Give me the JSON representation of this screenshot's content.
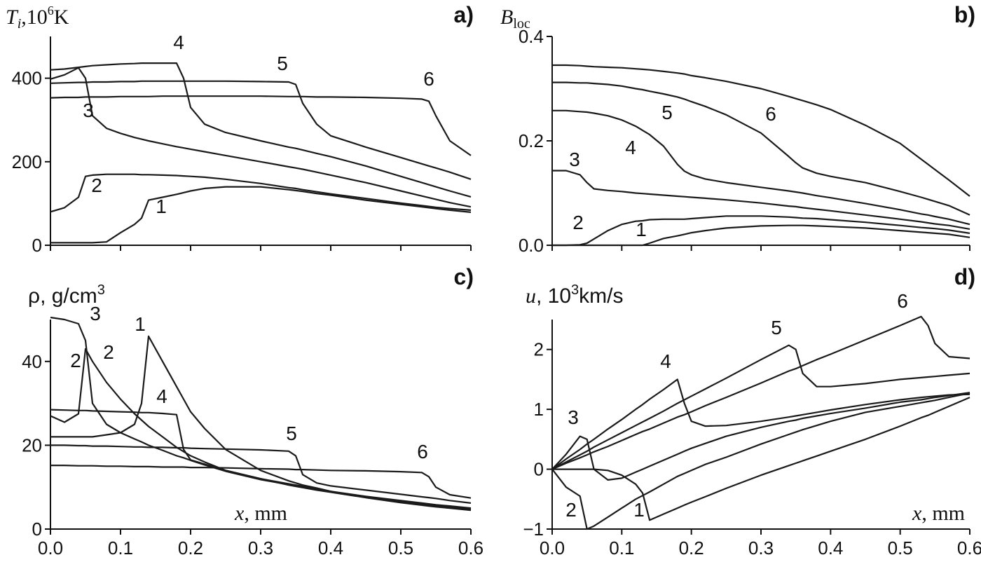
{
  "chart_data": [
    {
      "type": "line",
      "title": "a)",
      "ylabel": [
        "T",
        "i",
        ",10",
        "6",
        "K"
      ],
      "x": [
        0,
        0.02,
        0.04,
        0.05,
        0.06,
        0.08,
        0.1,
        0.12,
        0.13,
        0.14,
        0.16,
        0.18,
        0.19,
        0.2,
        0.22,
        0.25,
        0.3,
        0.34,
        0.35,
        0.36,
        0.38,
        0.4,
        0.45,
        0.5,
        0.53,
        0.54,
        0.55,
        0.57,
        0.6
      ],
      "xlim": [
        0,
        0.6
      ],
      "xticks": [
        0,
        0.1,
        0.2,
        0.3,
        0.4,
        0.5,
        0.6
      ],
      "xtick_labels": false,
      "ylim": [
        0,
        500
      ],
      "yticks": [
        0,
        200,
        400
      ],
      "series": [
        {
          "name": "1",
          "color": "#1a1a1a",
          "values": [
            6,
            6,
            6,
            6,
            6,
            8,
            30,
            50,
            65,
            108,
            115,
            122,
            126,
            130,
            136,
            140,
            140,
            133,
            131,
            129,
            124,
            120,
            108,
            98,
            92,
            90,
            88,
            84,
            79
          ]
        },
        {
          "name": "2",
          "color": "#1a1a1a",
          "values": [
            80,
            90,
            115,
            165,
            168,
            170,
            170,
            170,
            169,
            169,
            168,
            167,
            166,
            165,
            163,
            158,
            148,
            138,
            136,
            133,
            128,
            123,
            112,
            101,
            95,
            93,
            91,
            88,
            84
          ]
        },
        {
          "name": "3",
          "color": "#1a1a1a",
          "values": [
            398,
            408,
            425,
            400,
            310,
            280,
            268,
            258,
            254,
            250,
            243,
            236,
            233,
            230,
            224,
            215,
            200,
            188,
            185,
            182,
            175,
            168,
            150,
            130,
            118,
            114,
            110,
            102,
            92
          ]
        },
        {
          "name": "4",
          "color": "#1a1a1a",
          "values": [
            420,
            422,
            426,
            428,
            430,
            432,
            434,
            435,
            436,
            436,
            436,
            436,
            400,
            330,
            290,
            270,
            250,
            235,
            232,
            228,
            220,
            212,
            190,
            165,
            150,
            145,
            140,
            130,
            116
          ]
        },
        {
          "name": "5",
          "color": "#1a1a1a",
          "values": [
            388,
            389,
            390,
            390,
            391,
            391,
            392,
            392,
            393,
            393,
            393,
            393,
            393,
            393,
            393,
            393,
            392,
            391,
            385,
            340,
            290,
            262,
            235,
            210,
            195,
            190,
            185,
            175,
            158
          ]
        },
        {
          "name": "6",
          "color": "#1a1a1a",
          "values": [
            353,
            354,
            354,
            355,
            355,
            355,
            356,
            356,
            356,
            356,
            357,
            357,
            357,
            357,
            357,
            357,
            357,
            356,
            356,
            356,
            355,
            355,
            354,
            352,
            350,
            345,
            310,
            250,
            215
          ]
        }
      ]
    },
    {
      "type": "line",
      "title": "b)",
      "ylabel": [
        "B",
        "loc"
      ],
      "x": [
        0,
        0.02,
        0.04,
        0.05,
        0.06,
        0.08,
        0.1,
        0.12,
        0.13,
        0.14,
        0.16,
        0.18,
        0.19,
        0.2,
        0.22,
        0.25,
        0.3,
        0.34,
        0.35,
        0.36,
        0.38,
        0.4,
        0.45,
        0.5,
        0.53,
        0.54,
        0.55,
        0.57,
        0.6
      ],
      "xlim": [
        0,
        0.6
      ],
      "xticks": [
        0,
        0.1,
        0.2,
        0.3,
        0.4,
        0.5,
        0.6
      ],
      "xtick_labels": false,
      "ylim": [
        0,
        0.4
      ],
      "yticks": [
        {
          "value": 0,
          "label": "0.0"
        },
        0.2,
        0.4
      ],
      "series": [
        {
          "name": "1",
          "color": "#1a1a1a",
          "values": [
            0,
            0,
            0,
            0,
            0,
            0,
            0,
            0,
            0,
            0.004,
            0.013,
            0.018,
            0.021,
            0.024,
            0.028,
            0.033,
            0.037,
            0.038,
            0.038,
            0.038,
            0.037,
            0.036,
            0.033,
            0.028,
            0.025,
            0.024,
            0.023,
            0.021,
            0.015
          ]
        },
        {
          "name": "2",
          "color": "#1a1a1a",
          "values": [
            0,
            0,
            0.001,
            0.004,
            0.012,
            0.028,
            0.04,
            0.046,
            0.047,
            0.049,
            0.05,
            0.05,
            0.05,
            0.051,
            0.053,
            0.056,
            0.056,
            0.054,
            0.053,
            0.052,
            0.051,
            0.049,
            0.044,
            0.038,
            0.034,
            0.033,
            0.032,
            0.029,
            0.023
          ]
        },
        {
          "name": "3",
          "color": "#1a1a1a",
          "values": [
            0.143,
            0.143,
            0.135,
            0.12,
            0.108,
            0.105,
            0.103,
            0.1,
            0.099,
            0.098,
            0.096,
            0.094,
            0.093,
            0.092,
            0.09,
            0.087,
            0.081,
            0.075,
            0.074,
            0.072,
            0.069,
            0.066,
            0.058,
            0.05,
            0.045,
            0.043,
            0.041,
            0.038,
            0.031
          ]
        },
        {
          "name": "4",
          "color": "#1a1a1a",
          "values": [
            0.258,
            0.258,
            0.256,
            0.255,
            0.253,
            0.248,
            0.24,
            0.228,
            0.22,
            0.212,
            0.19,
            0.155,
            0.142,
            0.135,
            0.127,
            0.12,
            0.111,
            0.104,
            0.102,
            0.1,
            0.095,
            0.091,
            0.08,
            0.068,
            0.06,
            0.058,
            0.055,
            0.05,
            0.04
          ]
        },
        {
          "name": "5",
          "color": "#1a1a1a",
          "values": [
            0.312,
            0.312,
            0.311,
            0.311,
            0.31,
            0.308,
            0.305,
            0.3,
            0.298,
            0.295,
            0.29,
            0.284,
            0.28,
            0.275,
            0.266,
            0.25,
            0.215,
            0.17,
            0.158,
            0.148,
            0.138,
            0.132,
            0.12,
            0.103,
            0.092,
            0.088,
            0.084,
            0.076,
            0.058
          ]
        },
        {
          "name": "6",
          "color": "#1a1a1a",
          "values": [
            0.345,
            0.345,
            0.344,
            0.343,
            0.342,
            0.341,
            0.34,
            0.338,
            0.337,
            0.336,
            0.333,
            0.33,
            0.328,
            0.325,
            0.321,
            0.314,
            0.3,
            0.285,
            0.281,
            0.277,
            0.269,
            0.26,
            0.23,
            0.195,
            0.165,
            0.155,
            0.145,
            0.125,
            0.094
          ]
        }
      ]
    },
    {
      "type": "line",
      "title": "c)",
      "ylabel": [
        "ρ, g/cm",
        "3"
      ],
      "xlabel": [
        "x",
        ", mm"
      ],
      "x": [
        0,
        0.02,
        0.04,
        0.05,
        0.06,
        0.08,
        0.1,
        0.12,
        0.13,
        0.14,
        0.16,
        0.18,
        0.19,
        0.2,
        0.22,
        0.25,
        0.3,
        0.34,
        0.35,
        0.36,
        0.38,
        0.4,
        0.45,
        0.5,
        0.53,
        0.54,
        0.55,
        0.57,
        0.6
      ],
      "xlim": [
        0,
        0.6
      ],
      "xticks": [
        {
          "value": 0,
          "label": "0.0"
        },
        0.1,
        0.2,
        0.3,
        0.4,
        0.5,
        0.6
      ],
      "xtick_labels": true,
      "ylim": [
        0,
        50
      ],
      "yticks": [
        0,
        20,
        40
      ],
      "series": [
        {
          "name": "1",
          "color": "#1a1a1a",
          "values": [
            22,
            22,
            22,
            22,
            22,
            22.5,
            23,
            25,
            30,
            46,
            40,
            34,
            31,
            28,
            24,
            19,
            14,
            11.5,
            11,
            10.5,
            9.8,
            9,
            7.5,
            6.3,
            5.7,
            5.5,
            5.3,
            5,
            4.5
          ]
        },
        {
          "name": "2",
          "color": "#1a1a1a",
          "values": [
            27,
            25.5,
            27.5,
            43,
            40,
            35,
            31,
            27.5,
            26,
            24.5,
            22,
            19.5,
            18.5,
            17.5,
            16,
            14,
            12,
            10.5,
            10.2,
            9.9,
            9.3,
            8.8,
            7.5,
            6.4,
            5.8,
            5.6,
            5.4,
            5.1,
            4.7
          ]
        },
        {
          "name": "3",
          "color": "#1a1a1a",
          "values": [
            50.5,
            50,
            49,
            45,
            30,
            25,
            23,
            21.5,
            20.8,
            20,
            18.8,
            17.5,
            17,
            16.4,
            15.3,
            13.8,
            11.8,
            10.6,
            10.3,
            10,
            9.4,
            8.9,
            7.6,
            6.5,
            5.9,
            5.7,
            5.5,
            5.2,
            4.8
          ]
        },
        {
          "name": "4",
          "color": "#1a1a1a",
          "values": [
            28.5,
            28.4,
            28.3,
            28.3,
            28.2,
            28.1,
            28,
            27.9,
            27.8,
            27.8,
            27.6,
            27.3,
            19,
            16.5,
            15.5,
            14,
            12,
            10.8,
            10.5,
            10.2,
            9.6,
            9,
            7.8,
            6.8,
            6.2,
            6,
            5.8,
            5.5,
            5
          ]
        },
        {
          "name": "5",
          "color": "#1a1a1a",
          "values": [
            20,
            20,
            19.9,
            19.9,
            19.8,
            19.8,
            19.7,
            19.6,
            19.6,
            19.5,
            19.5,
            19.4,
            19.4,
            19.3,
            19.2,
            19.1,
            18.9,
            18.6,
            17.5,
            13,
            11,
            10.3,
            9.3,
            8.3,
            7.7,
            7.5,
            7.3,
            6.8,
            6.2
          ]
        },
        {
          "name": "6",
          "color": "#1a1a1a",
          "values": [
            15.2,
            15.2,
            15.1,
            15.1,
            15.1,
            15,
            15,
            14.9,
            14.9,
            14.9,
            14.8,
            14.8,
            14.8,
            14.7,
            14.7,
            14.6,
            14.4,
            14.3,
            14.2,
            14.2,
            14.1,
            14,
            13.9,
            13.7,
            13.5,
            12.5,
            10,
            8.2,
            7.4
          ]
        }
      ]
    },
    {
      "type": "line",
      "title": "d)",
      "ylabel": [
        "u",
        ", 10",
        "3",
        "km/s"
      ],
      "xlabel": [
        "x",
        ", mm"
      ],
      "x": [
        0,
        0.02,
        0.04,
        0.05,
        0.06,
        0.08,
        0.1,
        0.12,
        0.13,
        0.14,
        0.16,
        0.18,
        0.19,
        0.2,
        0.22,
        0.25,
        0.3,
        0.34,
        0.35,
        0.36,
        0.38,
        0.4,
        0.45,
        0.5,
        0.53,
        0.54,
        0.55,
        0.57,
        0.6
      ],
      "xlim": [
        0,
        0.6
      ],
      "xticks": [
        {
          "value": 0,
          "label": "0.0"
        },
        0.1,
        0.2,
        0.3,
        0.4,
        0.5,
        0.6
      ],
      "xtick_labels": true,
      "ylim": [
        -1,
        2.5
      ],
      "yticks": [
        {
          "value": -1,
          "label": "−1"
        },
        0,
        1,
        2
      ],
      "series": [
        {
          "name": "1",
          "color": "#1a1a1a",
          "values": [
            0,
            0,
            0,
            0,
            0,
            -0.02,
            -0.1,
            -0.25,
            -0.4,
            -0.85,
            -0.75,
            -0.65,
            -0.6,
            -0.55,
            -0.46,
            -0.32,
            -0.1,
            0.06,
            0.1,
            0.14,
            0.22,
            0.3,
            0.5,
            0.72,
            0.86,
            0.9,
            0.95,
            1.05,
            1.2
          ]
        },
        {
          "name": "2",
          "color": "#1a1a1a",
          "values": [
            0,
            -0.3,
            -0.45,
            -1,
            -0.95,
            -0.8,
            -0.65,
            -0.5,
            -0.44,
            -0.38,
            -0.25,
            -0.12,
            -0.07,
            -0.02,
            0.08,
            0.2,
            0.42,
            0.58,
            0.62,
            0.66,
            0.73,
            0.8,
            0.95,
            1.05,
            1.11,
            1.13,
            1.15,
            1.2,
            1.27
          ]
        },
        {
          "name": "3",
          "color": "#1a1a1a",
          "values": [
            0,
            0.25,
            0.55,
            0.5,
            0,
            -0.18,
            -0.15,
            -0.05,
            0,
            0.05,
            0.15,
            0.25,
            0.3,
            0.35,
            0.43,
            0.55,
            0.7,
            0.8,
            0.82,
            0.85,
            0.89,
            0.93,
            1.02,
            1.12,
            1.16,
            1.18,
            1.2,
            1.23,
            1.28
          ]
        },
        {
          "name": "4",
          "color": "#1a1a1a",
          "values": [
            0,
            0.17,
            0.33,
            0.42,
            0.5,
            0.67,
            0.83,
            1.0,
            1.08,
            1.17,
            1.33,
            1.5,
            1.1,
            0.8,
            0.72,
            0.73,
            0.8,
            0.87,
            0.89,
            0.91,
            0.95,
            0.99,
            1.08,
            1.16,
            1.2,
            1.21,
            1.22,
            1.24,
            1.25
          ]
        },
        {
          "name": "5",
          "color": "#1a1a1a",
          "values": [
            0,
            0.12,
            0.24,
            0.3,
            0.37,
            0.49,
            0.61,
            0.73,
            0.79,
            0.85,
            0.97,
            1.1,
            1.16,
            1.22,
            1.34,
            1.52,
            1.83,
            2.07,
            2.0,
            1.6,
            1.38,
            1.38,
            1.43,
            1.5,
            1.53,
            1.54,
            1.55,
            1.57,
            1.6
          ]
        },
        {
          "name": "6",
          "color": "#1a1a1a",
          "values": [
            0,
            0.1,
            0.19,
            0.24,
            0.29,
            0.38,
            0.48,
            0.58,
            0.63,
            0.67,
            0.77,
            0.87,
            0.91,
            0.96,
            1.06,
            1.2,
            1.44,
            1.64,
            1.68,
            1.73,
            1.83,
            1.92,
            2.16,
            2.4,
            2.55,
            2.4,
            2.1,
            1.88,
            1.85
          ]
        }
      ]
    }
  ]
}
